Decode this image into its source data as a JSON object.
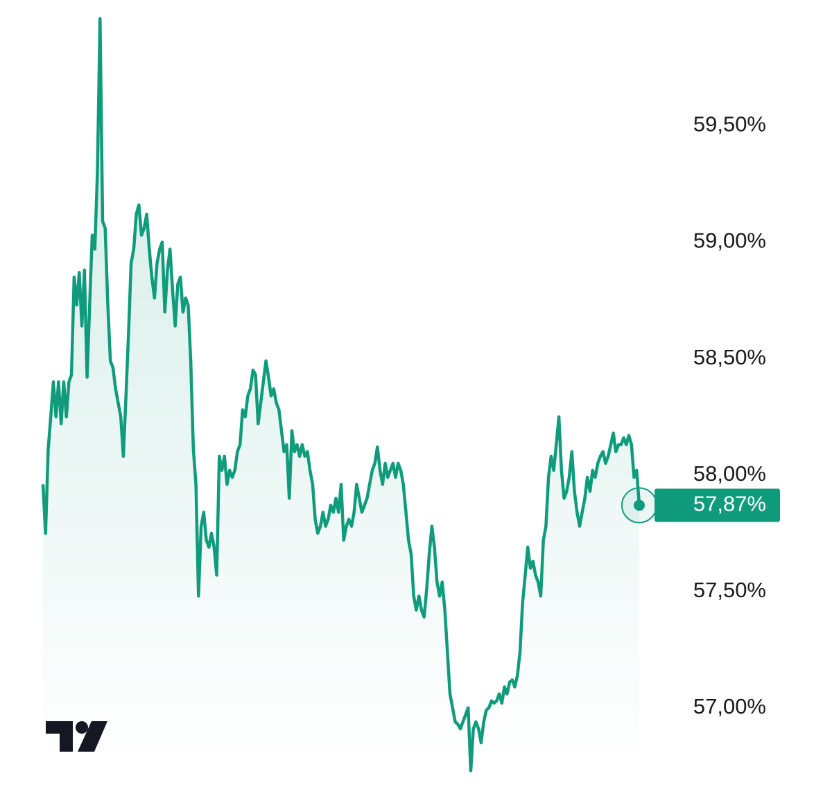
{
  "chart_data": {
    "type": "line",
    "color": "#109c7c",
    "values": [
      57.96,
      57.75,
      58.11,
      58.25,
      58.4,
      58.25,
      58.4,
      58.22,
      58.4,
      58.25,
      58.4,
      58.43,
      58.85,
      58.73,
      58.87,
      58.64,
      58.88,
      58.42,
      58.73,
      59.03,
      58.97,
      59.3,
      59.96,
      59.09,
      59.06,
      58.73,
      58.49,
      58.46,
      58.37,
      58.31,
      58.25,
      58.08,
      58.34,
      58.61,
      58.91,
      58.97,
      59.12,
      59.16,
      59.03,
      59.06,
      59.12,
      58.97,
      58.85,
      58.76,
      58.91,
      58.97,
      59.0,
      58.7,
      58.88,
      58.97,
      58.79,
      58.64,
      58.82,
      58.85,
      58.7,
      58.76,
      58.73,
      58.49,
      58.11,
      57.96,
      57.48,
      57.78,
      57.84,
      57.72,
      57.69,
      57.75,
      57.69,
      57.57,
      58.08,
      58.02,
      58.08,
      57.96,
      58.02,
      57.99,
      58.02,
      58.1,
      58.13,
      58.28,
      58.25,
      58.34,
      58.37,
      58.45,
      58.43,
      58.22,
      58.31,
      58.4,
      58.49,
      58.42,
      58.34,
      58.37,
      58.31,
      58.28,
      58.19,
      58.1,
      58.13,
      57.9,
      58.19,
      58.1,
      58.13,
      58.08,
      58.13,
      58.08,
      58.1,
      58.02,
      57.96,
      57.81,
      57.75,
      57.78,
      57.84,
      57.78,
      57.81,
      57.87,
      57.84,
      57.9,
      57.84,
      57.96,
      57.72,
      57.78,
      57.81,
      57.78,
      57.84,
      57.96,
      57.9,
      57.84,
      57.87,
      57.9,
      57.96,
      58.02,
      58.05,
      58.12,
      58.02,
      57.96,
      58.05,
      57.99,
      58.02,
      58.05,
      57.99,
      58.05,
      58.02,
      57.96,
      57.84,
      57.72,
      57.66,
      57.48,
      57.42,
      57.48,
      57.42,
      57.39,
      57.51,
      57.66,
      57.78,
      57.69,
      57.54,
      57.48,
      57.54,
      57.42,
      57.24,
      57.06,
      57.0,
      56.94,
      56.93,
      56.91,
      56.94,
      56.97,
      57.0,
      56.73,
      56.91,
      56.94,
      56.91,
      56.85,
      56.94,
      56.99,
      57.0,
      57.03,
      57.02,
      57.03,
      57.06,
      57.02,
      57.09,
      57.06,
      57.11,
      57.12,
      57.09,
      57.14,
      57.24,
      57.45,
      57.57,
      57.69,
      57.6,
      57.63,
      57.57,
      57.54,
      57.48,
      57.72,
      57.78,
      57.99,
      58.08,
      58.02,
      58.13,
      58.25,
      58.02,
      57.9,
      57.93,
      57.99,
      58.1,
      57.93,
      57.84,
      57.78,
      57.84,
      57.9,
      57.99,
      57.93,
      58.02,
      57.99,
      58.05,
      58.08,
      58.1,
      58.05,
      58.08,
      58.13,
      58.18,
      58.1,
      58.13,
      58.13,
      58.16,
      58.13,
      58.17,
      58.13,
      57.99,
      58.02,
      57.87
    ],
    "ylim": [
      56.66,
      60.04
    ],
    "yticks": [
      {
        "value": 57.0,
        "label": "57,00%"
      },
      {
        "value": 57.5,
        "label": "57,50%"
      },
      {
        "value": 58.0,
        "label": "58,00%"
      },
      {
        "value": 58.5,
        "label": "58,50%"
      },
      {
        "value": 59.0,
        "label": "59,00%"
      },
      {
        "value": 59.5,
        "label": "59,50%"
      }
    ],
    "grid": false,
    "annotations": [
      {
        "label": "57,87%",
        "value": 57.87
      }
    ]
  }
}
